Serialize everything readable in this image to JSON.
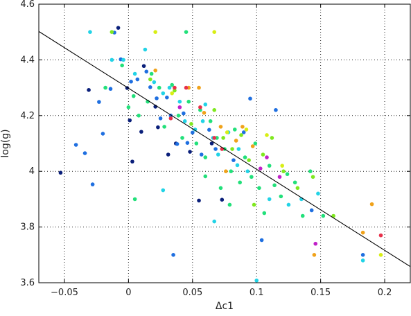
{
  "chart_data": {
    "type": "scatter",
    "title": "",
    "xlabel": "Δc1",
    "ylabel": "log(g)",
    "xlim": [
      -0.07,
      0.22
    ],
    "ylim": [
      3.6,
      4.6
    ],
    "x_ticks": [
      -0.05,
      0,
      0.05,
      0.1,
      0.15,
      0.2
    ],
    "x_tick_labels": [
      "−0.05",
      "0",
      "0.05",
      "0.1",
      "0.15",
      "0.2"
    ],
    "y_ticks": [
      3.6,
      3.8,
      4.0,
      4.2,
      4.4,
      4.6
    ],
    "y_tick_labels": [
      "3.6",
      "3.8",
      "4",
      "4.2",
      "4.4",
      "4.6"
    ],
    "grid": true,
    "legend": "none",
    "colors": {
      "navy": "#0a1f7a",
      "blue": "#1f6fe0",
      "cyan": "#22d3e6",
      "green": "#22e07a",
      "lime": "#7fe81f",
      "yellow": "#d8ee14",
      "orange": "#f0a21a",
      "red": "#e8304a",
      "magenta": "#c020c8"
    },
    "fit_line": {
      "x": [
        -0.07,
        0.22
      ],
      "y": [
        4.502,
        3.658
      ]
    },
    "points": [
      {
        "x": -0.053,
        "y": 3.995,
        "c": "navy"
      },
      {
        "x": -0.031,
        "y": 4.292,
        "c": "navy"
      },
      {
        "x": -0.008,
        "y": 4.515,
        "c": "navy"
      },
      {
        "x": -0.001,
        "y": 4.299,
        "c": "navy"
      },
      {
        "x": 0.001,
        "y": 4.183,
        "c": "navy"
      },
      {
        "x": 0.003,
        "y": 4.035,
        "c": "navy"
      },
      {
        "x": 0.01,
        "y": 4.142,
        "c": "navy"
      },
      {
        "x": 0.012,
        "y": 4.378,
        "c": "navy"
      },
      {
        "x": 0.021,
        "y": 4.232,
        "c": "navy"
      },
      {
        "x": 0.023,
        "y": 4.158,
        "c": "navy"
      },
      {
        "x": 0.031,
        "y": 4.06,
        "c": "navy"
      },
      {
        "x": 0.037,
        "y": 4.1,
        "c": "navy"
      },
      {
        "x": 0.048,
        "y": 4.07,
        "c": "navy"
      },
      {
        "x": 0.055,
        "y": 3.895,
        "c": "navy"
      },
      {
        "x": 0.065,
        "y": 4.1,
        "c": "navy"
      },
      {
        "x": 0.073,
        "y": 3.898,
        "c": "navy"
      },
      {
        "x": -0.041,
        "y": 4.095,
        "c": "blue"
      },
      {
        "x": -0.034,
        "y": 4.065,
        "c": "blue"
      },
      {
        "x": -0.028,
        "y": 3.953,
        "c": "blue"
      },
      {
        "x": -0.023,
        "y": 4.249,
        "c": "blue"
      },
      {
        "x": -0.02,
        "y": 4.135,
        "c": "blue"
      },
      {
        "x": -0.014,
        "y": 4.296,
        "c": "blue"
      },
      {
        "x": -0.011,
        "y": 4.498,
        "c": "blue"
      },
      {
        "x": -0.006,
        "y": 4.402,
        "c": "blue"
      },
      {
        "x": 0.002,
        "y": 4.322,
        "c": "blue"
      },
      {
        "x": 0.007,
        "y": 4.33,
        "c": "blue"
      },
      {
        "x": 0.014,
        "y": 4.358,
        "c": "blue"
      },
      {
        "x": 0.017,
        "y": 4.302,
        "c": "blue"
      },
      {
        "x": 0.022,
        "y": 4.262,
        "c": "blue"
      },
      {
        "x": 0.025,
        "y": 4.19,
        "c": "blue"
      },
      {
        "x": 0.03,
        "y": 4.265,
        "c": "blue"
      },
      {
        "x": 0.033,
        "y": 4.2,
        "c": "blue"
      },
      {
        "x": 0.035,
        "y": 3.7,
        "c": "blue"
      },
      {
        "x": 0.038,
        "y": 4.098,
        "c": "blue"
      },
      {
        "x": 0.043,
        "y": 4.208,
        "c": "blue"
      },
      {
        "x": 0.046,
        "y": 4.102,
        "c": "blue"
      },
      {
        "x": 0.05,
        "y": 4.139,
        "c": "blue"
      },
      {
        "x": 0.057,
        "y": 4.06,
        "c": "blue"
      },
      {
        "x": 0.063,
        "y": 4.149,
        "c": "blue"
      },
      {
        "x": 0.068,
        "y": 4.08,
        "c": "blue"
      },
      {
        "x": 0.082,
        "y": 4.04,
        "c": "blue"
      },
      {
        "x": 0.09,
        "y": 4.14,
        "c": "blue"
      },
      {
        "x": 0.095,
        "y": 4.261,
        "c": "blue"
      },
      {
        "x": 0.115,
        "y": 4.22,
        "c": "blue"
      },
      {
        "x": 0.104,
        "y": 3.753,
        "c": "blue"
      },
      {
        "x": 0.143,
        "y": 3.86,
        "c": "blue"
      },
      {
        "x": 0.183,
        "y": 3.7,
        "c": "blue"
      },
      {
        "x": -0.03,
        "y": 4.5,
        "c": "cyan"
      },
      {
        "x": -0.013,
        "y": 4.4,
        "c": "cyan"
      },
      {
        "x": -0.004,
        "y": 4.4,
        "c": "cyan"
      },
      {
        "x": 0.005,
        "y": 4.35,
        "c": "cyan"
      },
      {
        "x": 0.013,
        "y": 4.437,
        "c": "cyan"
      },
      {
        "x": 0.02,
        "y": 4.32,
        "c": "cyan"
      },
      {
        "x": 0.027,
        "y": 4.28,
        "c": "cyan"
      },
      {
        "x": 0.032,
        "y": 4.3,
        "c": "cyan"
      },
      {
        "x": 0.04,
        "y": 4.25,
        "c": "cyan"
      },
      {
        "x": 0.044,
        "y": 4.18,
        "c": "cyan"
      },
      {
        "x": 0.052,
        "y": 4.15,
        "c": "cyan"
      },
      {
        "x": 0.058,
        "y": 4.18,
        "c": "cyan"
      },
      {
        "x": 0.066,
        "y": 4.12,
        "c": "cyan"
      },
      {
        "x": 0.07,
        "y": 4.06,
        "c": "cyan"
      },
      {
        "x": 0.067,
        "y": 3.82,
        "c": "cyan"
      },
      {
        "x": 0.027,
        "y": 3.932,
        "c": "cyan"
      },
      {
        "x": 0.078,
        "y": 4.14,
        "c": "cyan"
      },
      {
        "x": 0.086,
        "y": 4.08,
        "c": "cyan"
      },
      {
        "x": 0.093,
        "y": 4.0,
        "c": "cyan"
      },
      {
        "x": 0.1,
        "y": 3.608,
        "c": "cyan"
      },
      {
        "x": 0.11,
        "y": 3.9,
        "c": "cyan"
      },
      {
        "x": 0.125,
        "y": 3.88,
        "c": "cyan"
      },
      {
        "x": 0.135,
        "y": 3.9,
        "c": "cyan"
      },
      {
        "x": 0.148,
        "y": 3.92,
        "c": "cyan"
      },
      {
        "x": 0.183,
        "y": 3.68,
        "c": "cyan"
      },
      {
        "x": 0.085,
        "y": 4.022,
        "c": "cyan"
      },
      {
        "x": 0.06,
        "y": 4.24,
        "c": "cyan"
      },
      {
        "x": -0.018,
        "y": 4.3,
        "c": "green"
      },
      {
        "x": -0.005,
        "y": 4.38,
        "c": "green"
      },
      {
        "x": 0.0,
        "y": 4.23,
        "c": "green"
      },
      {
        "x": 0.004,
        "y": 4.27,
        "c": "green"
      },
      {
        "x": 0.008,
        "y": 4.2,
        "c": "green"
      },
      {
        "x": 0.015,
        "y": 4.25,
        "c": "green"
      },
      {
        "x": 0.018,
        "y": 4.35,
        "c": "green"
      },
      {
        "x": 0.024,
        "y": 4.3,
        "c": "green"
      },
      {
        "x": 0.028,
        "y": 4.16,
        "c": "green"
      },
      {
        "x": 0.034,
        "y": 4.31,
        "c": "green"
      },
      {
        "x": 0.039,
        "y": 4.2,
        "c": "green"
      },
      {
        "x": 0.042,
        "y": 4.12,
        "c": "green"
      },
      {
        "x": 0.047,
        "y": 4.25,
        "c": "green"
      },
      {
        "x": 0.053,
        "y": 4.1,
        "c": "green"
      },
      {
        "x": 0.056,
        "y": 4.22,
        "c": "green"
      },
      {
        "x": 0.06,
        "y": 4.05,
        "c": "green"
      },
      {
        "x": 0.064,
        "y": 4.18,
        "c": "green"
      },
      {
        "x": 0.069,
        "y": 4.12,
        "c": "green"
      },
      {
        "x": 0.072,
        "y": 3.94,
        "c": "green"
      },
      {
        "x": 0.075,
        "y": 4.08,
        "c": "green"
      },
      {
        "x": 0.08,
        "y": 4.0,
        "c": "green"
      },
      {
        "x": 0.083,
        "y": 4.15,
        "c": "green"
      },
      {
        "x": 0.087,
        "y": 3.96,
        "c": "green"
      },
      {
        "x": 0.091,
        "y": 4.05,
        "c": "green"
      },
      {
        "x": 0.096,
        "y": 3.98,
        "c": "green"
      },
      {
        "x": 0.099,
        "y": 4.1,
        "c": "green"
      },
      {
        "x": 0.102,
        "y": 3.94,
        "c": "green"
      },
      {
        "x": 0.106,
        "y": 3.85,
        "c": "green"
      },
      {
        "x": 0.11,
        "y": 4.02,
        "c": "green"
      },
      {
        "x": 0.114,
        "y": 3.95,
        "c": "green"
      },
      {
        "x": 0.119,
        "y": 3.91,
        "c": "green"
      },
      {
        "x": 0.124,
        "y": 3.99,
        "c": "green"
      },
      {
        "x": 0.13,
        "y": 3.96,
        "c": "green"
      },
      {
        "x": 0.136,
        "y": 3.84,
        "c": "green"
      },
      {
        "x": 0.142,
        "y": 4.0,
        "c": "green"
      },
      {
        "x": 0.152,
        "y": 3.84,
        "c": "green"
      },
      {
        "x": 0.045,
        "y": 4.5,
        "c": "green"
      },
      {
        "x": 0.005,
        "y": 3.9,
        "c": "green"
      },
      {
        "x": 0.06,
        "y": 3.982,
        "c": "green"
      },
      {
        "x": 0.079,
        "y": 3.88,
        "c": "green"
      },
      {
        "x": -0.013,
        "y": 4.5,
        "c": "lime"
      },
      {
        "x": 0.017,
        "y": 4.33,
        "c": "lime"
      },
      {
        "x": 0.036,
        "y": 4.29,
        "c": "lime"
      },
      {
        "x": 0.049,
        "y": 4.17,
        "c": "lime"
      },
      {
        "x": 0.067,
        "y": 4.22,
        "c": "lime"
      },
      {
        "x": 0.074,
        "y": 4.12,
        "c": "lime"
      },
      {
        "x": 0.081,
        "y": 4.08,
        "c": "lime"
      },
      {
        "x": 0.088,
        "y": 4.13,
        "c": "lime"
      },
      {
        "x": 0.094,
        "y": 4.04,
        "c": "lime"
      },
      {
        "x": 0.098,
        "y": 3.88,
        "c": "lime"
      },
      {
        "x": 0.105,
        "y": 4.06,
        "c": "lime"
      },
      {
        "x": 0.112,
        "y": 4.12,
        "c": "lime"
      },
      {
        "x": 0.121,
        "y": 4.0,
        "c": "lime"
      },
      {
        "x": 0.132,
        "y": 3.94,
        "c": "lime"
      },
      {
        "x": 0.144,
        "y": 3.98,
        "c": "lime"
      },
      {
        "x": 0.16,
        "y": 3.84,
        "c": "lime"
      },
      {
        "x": 0.021,
        "y": 4.5,
        "c": "yellow"
      },
      {
        "x": 0.067,
        "y": 4.5,
        "c": "yellow"
      },
      {
        "x": 0.034,
        "y": 4.28,
        "c": "yellow"
      },
      {
        "x": 0.077,
        "y": 4.14,
        "c": "yellow"
      },
      {
        "x": 0.092,
        "y": 4.15,
        "c": "yellow"
      },
      {
        "x": 0.108,
        "y": 4.13,
        "c": "yellow"
      },
      {
        "x": 0.12,
        "y": 4.02,
        "c": "yellow"
      },
      {
        "x": 0.197,
        "y": 3.7,
        "c": "yellow"
      },
      {
        "x": 0.055,
        "y": 4.3,
        "c": "orange"
      },
      {
        "x": 0.047,
        "y": 4.3,
        "c": "orange"
      },
      {
        "x": 0.021,
        "y": 4.362,
        "c": "orange"
      },
      {
        "x": 0.059,
        "y": 4.21,
        "c": "orange"
      },
      {
        "x": 0.072,
        "y": 4.16,
        "c": "orange"
      },
      {
        "x": 0.084,
        "y": 4.11,
        "c": "orange"
      },
      {
        "x": 0.089,
        "y": 4.16,
        "c": "orange"
      },
      {
        "x": 0.097,
        "y": 4.09,
        "c": "orange"
      },
      {
        "x": 0.076,
        "y": 4.0,
        "c": "orange"
      },
      {
        "x": 0.145,
        "y": 3.7,
        "c": "orange"
      },
      {
        "x": 0.19,
        "y": 3.882,
        "c": "orange"
      },
      {
        "x": 0.183,
        "y": 3.78,
        "c": "orange"
      },
      {
        "x": 0.036,
        "y": 4.3,
        "c": "red"
      },
      {
        "x": 0.045,
        "y": 4.3,
        "c": "red"
      },
      {
        "x": 0.056,
        "y": 4.23,
        "c": "red"
      },
      {
        "x": 0.067,
        "y": 4.12,
        "c": "red"
      },
      {
        "x": 0.073,
        "y": 4.08,
        "c": "red"
      },
      {
        "x": 0.033,
        "y": 4.19,
        "c": "red"
      },
      {
        "x": 0.197,
        "y": 3.77,
        "c": "red"
      },
      {
        "x": 0.04,
        "y": 4.23,
        "c": "magenta"
      },
      {
        "x": 0.103,
        "y": 4.01,
        "c": "magenta"
      },
      {
        "x": 0.108,
        "y": 4.05,
        "c": "magenta"
      },
      {
        "x": 0.118,
        "y": 3.98,
        "c": "magenta"
      },
      {
        "x": 0.146,
        "y": 3.74,
        "c": "magenta"
      }
    ]
  }
}
